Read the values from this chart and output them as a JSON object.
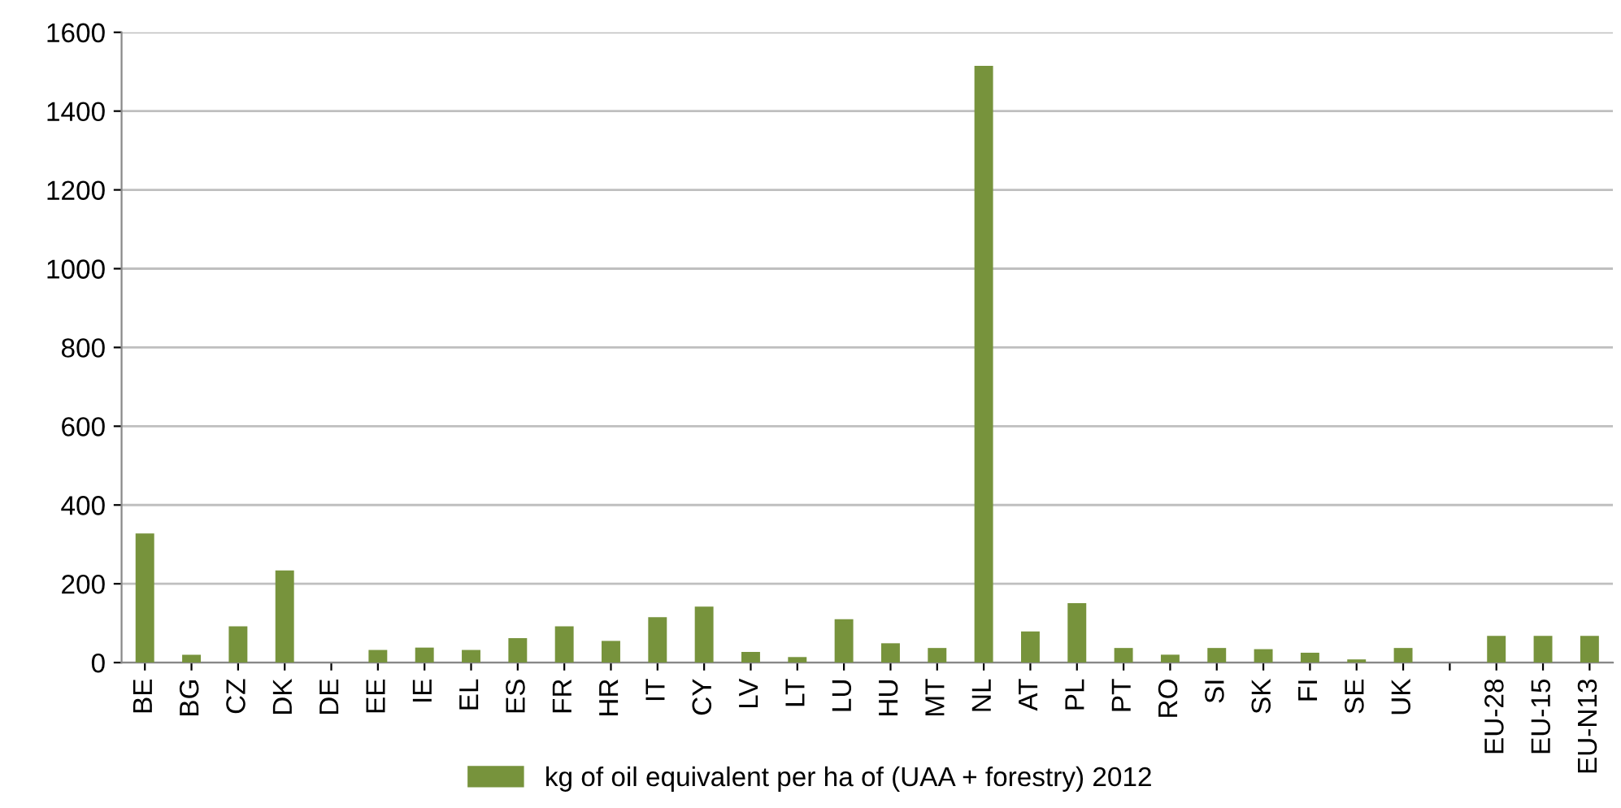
{
  "chart_data": {
    "type": "bar",
    "categories": [
      "BE",
      "BG",
      "CZ",
      "DK",
      "DE",
      "EE",
      "IE",
      "EL",
      "ES",
      "FR",
      "HR",
      "IT",
      "CY",
      "LV",
      "LT",
      "LU",
      "HU",
      "MT",
      "NL",
      "AT",
      "PL",
      "PT",
      "RO",
      "SI",
      "SK",
      "FI",
      "SE",
      "UK",
      null,
      "EU-28",
      "EU-15",
      "EU-N13"
    ],
    "series": [
      {
        "name": "kg of oil equivalent per ha of (UAA + forestry) 2012",
        "color": "#77933c",
        "values": [
          328,
          20,
          92,
          234,
          0,
          32,
          38,
          32,
          62,
          92,
          55,
          115,
          142,
          27,
          14,
          110,
          49,
          37,
          1515,
          79,
          151,
          37,
          20,
          37,
          34,
          25,
          8,
          37,
          null,
          68,
          68,
          68
        ]
      }
    ],
    "ylim": [
      0,
      1600
    ],
    "yticks": [
      0,
      200,
      400,
      600,
      800,
      1000,
      1200,
      1400,
      1600
    ],
    "grid": "y",
    "legend": "bottom"
  }
}
